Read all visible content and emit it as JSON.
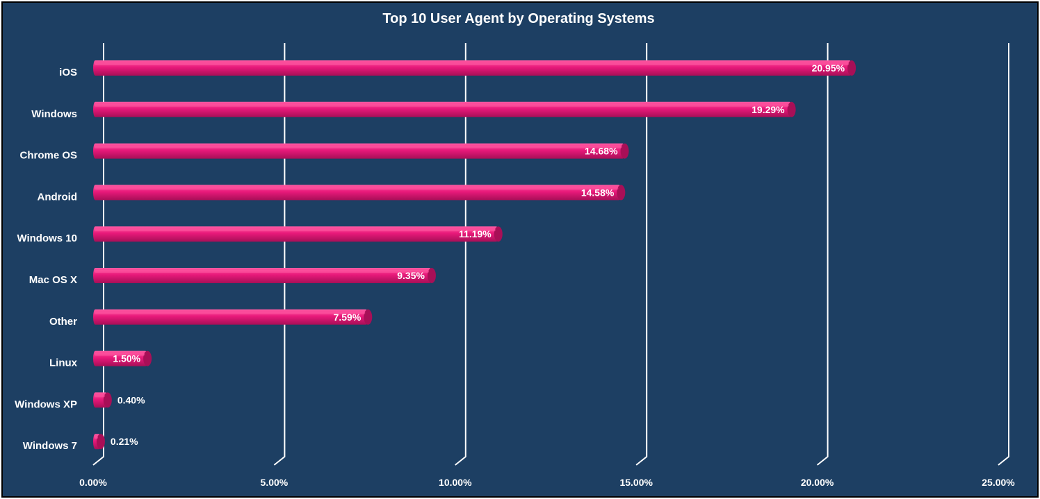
{
  "chart_data": {
    "type": "bar",
    "orientation": "horizontal",
    "title": "Top 10 User Agent by Operating Systems",
    "categories": [
      "iOS",
      "Windows",
      "Chrome OS",
      "Android",
      "Windows 10",
      "Mac OS X",
      "Other",
      "Linux",
      "Windows XP",
      "Windows 7"
    ],
    "values": [
      20.95,
      19.29,
      14.68,
      14.58,
      11.19,
      9.35,
      7.59,
      1.5,
      0.4,
      0.21
    ],
    "value_labels": [
      "20.95%",
      "19.29%",
      "14.68%",
      "14.58%",
      "11.19%",
      "9.35%",
      "7.59%",
      "1.50%",
      "0.40%",
      "0.21%"
    ],
    "xlim": [
      0,
      25
    ],
    "x_ticks": [
      0,
      5,
      10,
      15,
      20,
      25
    ],
    "x_tick_labels": [
      "0.00%",
      "5.00%",
      "10.00%",
      "15.00%",
      "20.00%",
      "25.00%"
    ],
    "grid": true,
    "legend": "none"
  },
  "colors": {
    "background": "#1d3f63",
    "bar": "#e8197a",
    "bar_dark": "#a80f57",
    "bar_light": "#ff5aa3",
    "grid": "#ffffff",
    "text": "#ffffff"
  }
}
